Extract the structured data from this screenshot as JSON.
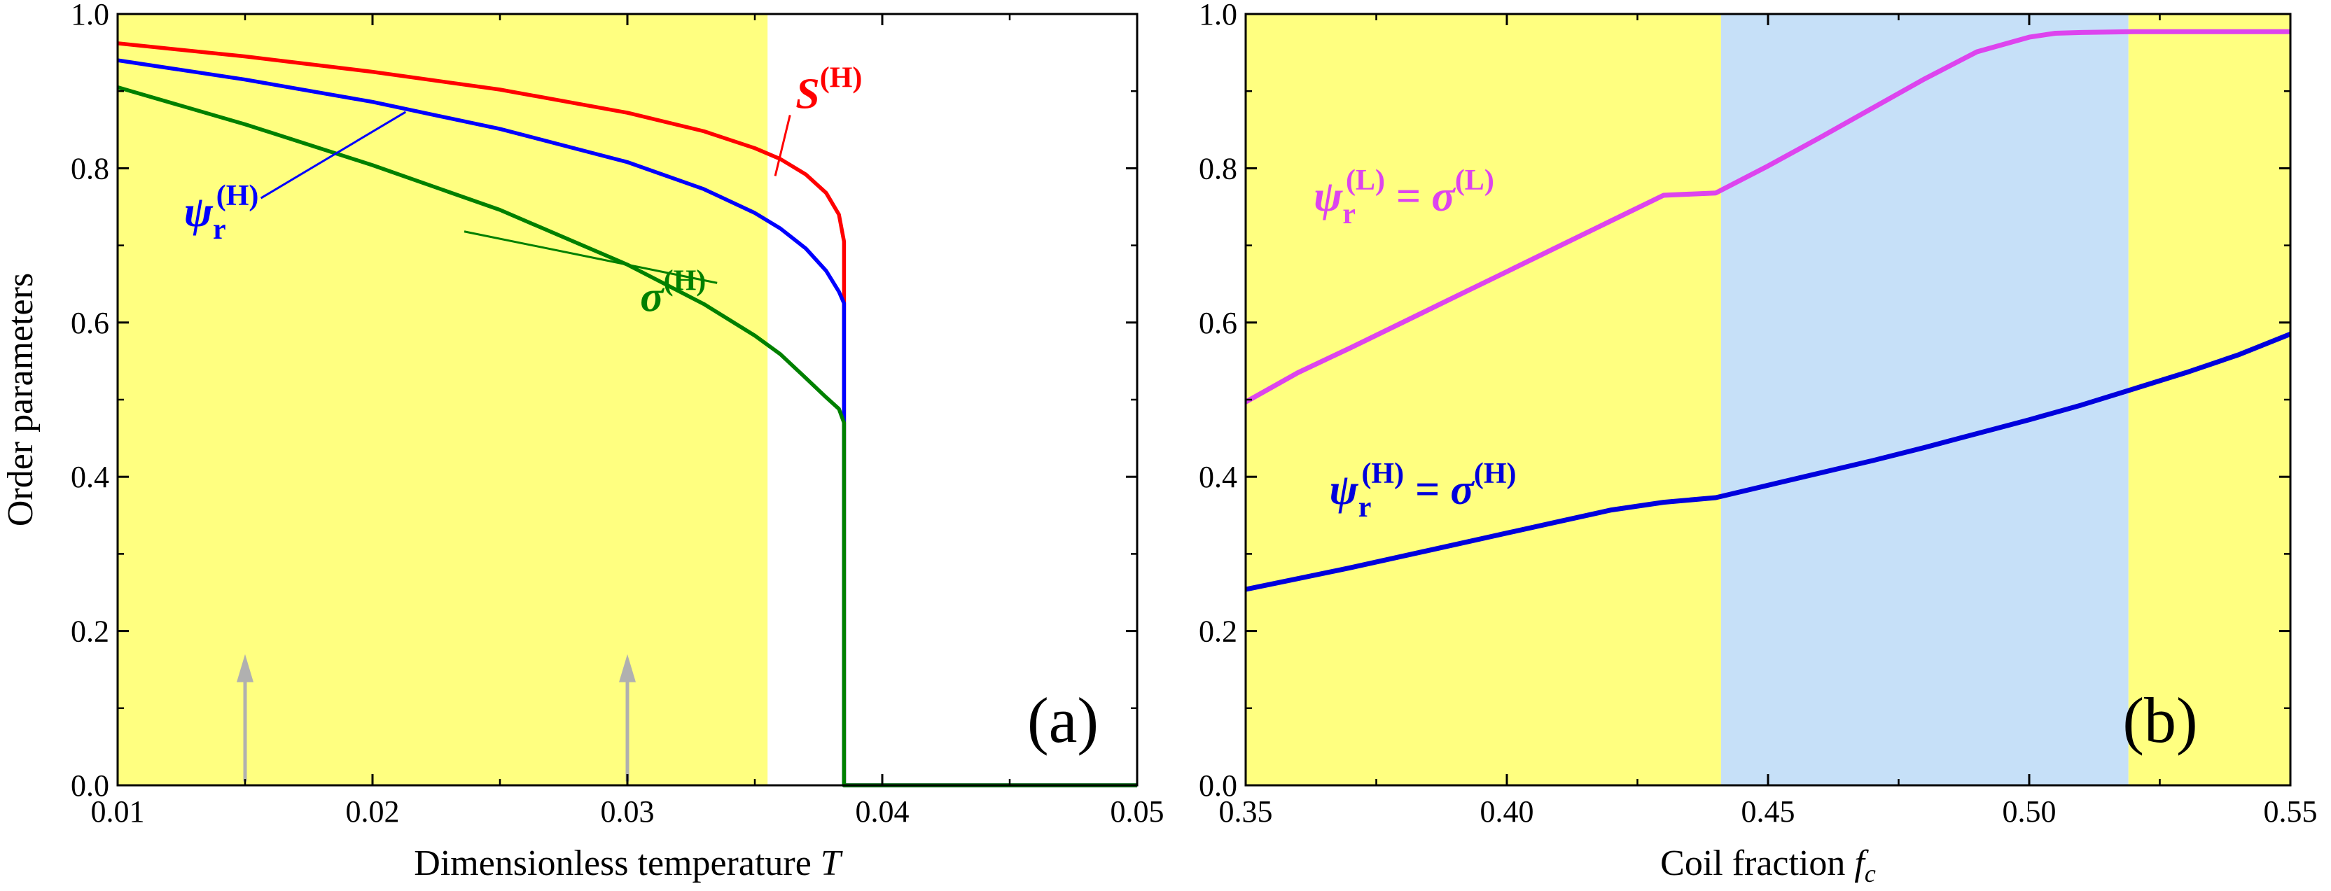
{
  "chart_data": [
    {
      "type": "line",
      "panel_label": "(a)",
      "xlabel": "Dimensionless temperature",
      "xlabel_symbol": "T",
      "ylabel": "Order parameters",
      "xlim": [
        0.01,
        0.05
      ],
      "ylim": [
        0.0,
        1.0
      ],
      "xticks": [
        0.01,
        0.02,
        0.03,
        0.04,
        0.05
      ],
      "xtick_labels": [
        "0.01",
        "0.02",
        "0.03",
        "0.04",
        "0.05"
      ],
      "yticks": [
        0.0,
        0.2,
        0.4,
        0.6,
        0.8,
        1.0
      ],
      "ytick_labels": [
        "0.0",
        "0.2",
        "0.4",
        "0.6",
        "0.8",
        "1.0"
      ],
      "shaded_regions": [
        {
          "x": [
            0.01,
            0.0355
          ],
          "color": "#ffff80"
        }
      ],
      "arrows": [
        {
          "x": 0.015,
          "y_from": 0.005,
          "y_to": 0.17,
          "color": "#b0b0b0"
        },
        {
          "x": 0.03,
          "y_from": 0.005,
          "y_to": 0.17,
          "color": "#b0b0b0"
        }
      ],
      "series": [
        {
          "name": "S(H)",
          "color": "#ff0000",
          "x": [
            0.01,
            0.015,
            0.02,
            0.025,
            0.03,
            0.033,
            0.035,
            0.036,
            0.037,
            0.0378,
            0.0383,
            0.0385,
            0.0385,
            0.0385,
            0.05
          ],
          "y": [
            0.962,
            0.945,
            0.925,
            0.902,
            0.872,
            0.848,
            0.826,
            0.812,
            0.792,
            0.768,
            0.74,
            0.705,
            0.0,
            0.0,
            0.0
          ]
        },
        {
          "name": "psi_r(H)",
          "color": "#0000ff",
          "x": [
            0.01,
            0.015,
            0.02,
            0.025,
            0.03,
            0.033,
            0.035,
            0.036,
            0.037,
            0.0378,
            0.0383,
            0.0385,
            0.0385,
            0.05
          ],
          "y": [
            0.94,
            0.915,
            0.886,
            0.851,
            0.808,
            0.773,
            0.742,
            0.722,
            0.696,
            0.667,
            0.64,
            0.625,
            0.0,
            0.0
          ]
        },
        {
          "name": "sigma(H)",
          "color": "#008000",
          "x": [
            0.01,
            0.015,
            0.02,
            0.025,
            0.03,
            0.033,
            0.035,
            0.036,
            0.037,
            0.0378,
            0.0383,
            0.0385,
            0.0385,
            0.05
          ],
          "y": [
            0.905,
            0.857,
            0.804,
            0.746,
            0.675,
            0.624,
            0.583,
            0.559,
            0.528,
            0.503,
            0.488,
            0.47,
            0.0,
            0.0
          ]
        }
      ],
      "annotations": [
        {
          "main": "S",
          "sup": "(H)",
          "sub": "",
          "rest": "",
          "color": "#ff0000",
          "tx": 0.0366,
          "ty": 0.878,
          "px": 0.0358,
          "py": 0.79
        },
        {
          "main": "ψ",
          "sup": "(H)",
          "sub": "r",
          "rest": "",
          "color": "#0000ff",
          "tx": 0.0126,
          "ty": 0.725,
          "px": 0.0213,
          "py": 0.873
        },
        {
          "main": "σ",
          "sup": "(H)",
          "sub": "",
          "rest": "",
          "color": "#008000",
          "tx": 0.0305,
          "ty": 0.615,
          "px": 0.0236,
          "py": 0.718
        }
      ]
    },
    {
      "type": "line",
      "panel_label": "(b)",
      "xlabel": "Coil fraction",
      "xlabel_symbol": "f",
      "xlabel_symbol_sub": "c",
      "ylabel": "",
      "xlim": [
        0.35,
        0.55
      ],
      "ylim": [
        0.0,
        1.0
      ],
      "xticks": [
        0.35,
        0.4,
        0.45,
        0.5,
        0.55
      ],
      "xtick_labels": [
        "0.35",
        "0.40",
        "0.45",
        "0.50",
        "0.55"
      ],
      "yticks": [
        0.0,
        0.2,
        0.4,
        0.6,
        0.8,
        1.0
      ],
      "ytick_labels": [
        "0.0",
        "0.2",
        "0.4",
        "0.6",
        "0.8",
        "1.0"
      ],
      "shaded_regions": [
        {
          "x": [
            0.35,
            0.441
          ],
          "color": "#ffff80"
        },
        {
          "x": [
            0.441,
            0.519
          ],
          "color": "#c6e0f8"
        },
        {
          "x": [
            0.519,
            0.55
          ],
          "color": "#ffff80"
        }
      ],
      "arrows": [],
      "series": [
        {
          "name": "psi_r(L) = sigma(L)",
          "color": "#dd44ee",
          "x": [
            0.35,
            0.36,
            0.37,
            0.38,
            0.39,
            0.4,
            0.41,
            0.42,
            0.43,
            0.44,
            0.45,
            0.46,
            0.47,
            0.48,
            0.49,
            0.5,
            0.505,
            0.51,
            0.52,
            0.53,
            0.54,
            0.55
          ],
          "y": [
            0.497,
            0.535,
            0.567,
            0.6,
            0.633,
            0.666,
            0.699,
            0.732,
            0.765,
            0.768,
            0.803,
            0.84,
            0.878,
            0.916,
            0.951,
            0.97,
            0.975,
            0.976,
            0.977,
            0.977,
            0.977,
            0.977
          ]
        },
        {
          "name": "psi_r(H) = sigma(H)",
          "color": "#0000dd",
          "x": [
            0.35,
            0.36,
            0.37,
            0.38,
            0.39,
            0.4,
            0.41,
            0.42,
            0.43,
            0.44,
            0.45,
            0.46,
            0.47,
            0.48,
            0.49,
            0.5,
            0.51,
            0.52,
            0.53,
            0.54,
            0.55
          ],
          "y": [
            0.254,
            0.268,
            0.282,
            0.297,
            0.312,
            0.327,
            0.342,
            0.357,
            0.367,
            0.373,
            0.389,
            0.405,
            0.421,
            0.438,
            0.456,
            0.474,
            0.493,
            0.514,
            0.535,
            0.558,
            0.585
          ]
        }
      ],
      "annotations": [
        {
          "main": "ψ",
          "sup": "(L)",
          "sub": "r",
          "rest": " = σ",
          "rest_sup": "(L)",
          "color": "#dd44ee",
          "tx": 0.363,
          "ty": 0.745
        },
        {
          "main": "ψ",
          "sup": "(H)",
          "sub": "r",
          "rest": " = σ",
          "rest_sup": "(H)",
          "color": "#0000dd",
          "tx": 0.366,
          "ty": 0.365
        }
      ]
    }
  ]
}
